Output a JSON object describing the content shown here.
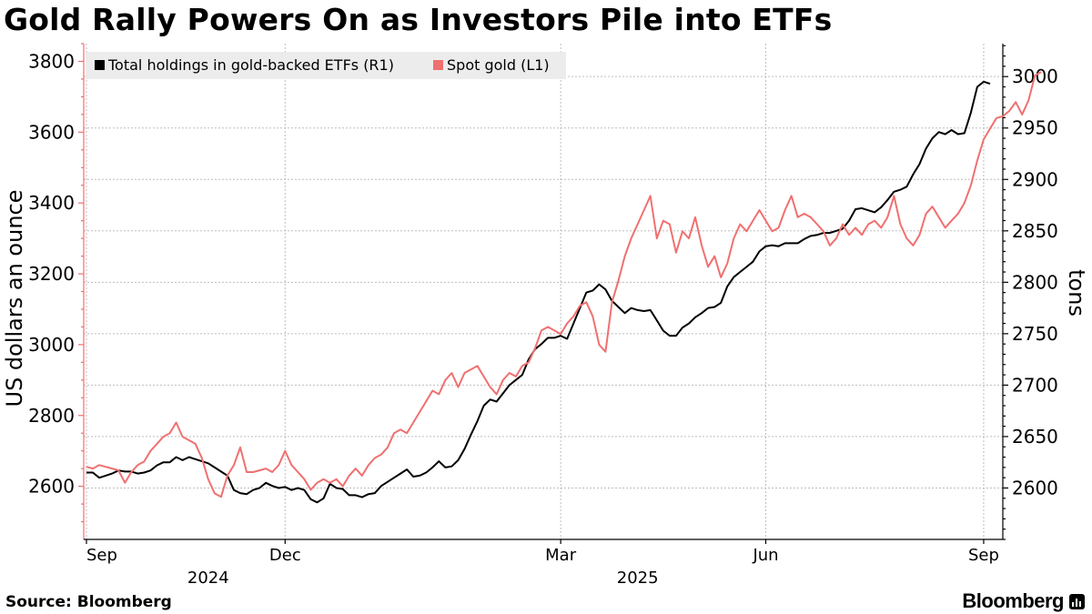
{
  "title": "Gold Rally Powers On as Investors Pile into ETFs",
  "source": "Source: Bloomberg",
  "brand": "Bloomberg",
  "colors": {
    "etf": "#000000",
    "spot": "#f07070",
    "grid": "#bdbdbd"
  },
  "chart_data": {
    "type": "line",
    "title": "Gold Rally Powers On as Investors Pile into ETFs",
    "x_labels": [
      {
        "label": "Sep",
        "index": 0
      },
      {
        "label": "Dec",
        "index": 31
      },
      {
        "label": "Mar",
        "index": 74
      },
      {
        "label": "Jun",
        "index": 106
      },
      {
        "label": "Sep",
        "index": 140
      }
    ],
    "x_year_labels": [
      {
        "label": "2024",
        "index": 19
      },
      {
        "label": "2025",
        "index": 86
      }
    ],
    "left_axis": {
      "label": "US dollars an ounce",
      "ylim": [
        2450,
        3850
      ],
      "ticks": [
        2600,
        2800,
        3000,
        3200,
        3400,
        3600,
        3800
      ]
    },
    "right_axis": {
      "label": "tons",
      "ylim": [
        2550,
        3032
      ],
      "ticks": [
        2600,
        2650,
        2700,
        2750,
        2800,
        2850,
        2900,
        2950,
        3000
      ]
    },
    "series": [
      {
        "name": "Total holdings in gold-backed ETFs (R1)",
        "axis": "right",
        "values": [
          2615,
          2615,
          2610,
          2612,
          2614,
          2617,
          2616,
          2616,
          2614,
          2615,
          2617,
          2622,
          2625,
          2625,
          2630,
          2627,
          2630,
          2628,
          2626,
          2624,
          2620,
          2616,
          2612,
          2598,
          2595,
          2594,
          2598,
          2600,
          2605,
          2602,
          2600,
          2601,
          2598,
          2600,
          2598,
          2589,
          2586,
          2590,
          2604,
          2600,
          2599,
          2593,
          2593,
          2591,
          2594,
          2595,
          2602,
          2606,
          2610,
          2614,
          2618,
          2611,
          2612,
          2615,
          2620,
          2626,
          2620,
          2621,
          2627,
          2638,
          2652,
          2665,
          2680,
          2686,
          2684,
          2692,
          2700,
          2705,
          2710,
          2725,
          2735,
          2740,
          2746,
          2746,
          2748,
          2745,
          2760,
          2775,
          2790,
          2792,
          2798,
          2793,
          2782,
          2776,
          2770,
          2775,
          2773,
          2772,
          2773,
          2763,
          2753,
          2748,
          2748,
          2756,
          2760,
          2766,
          2770,
          2775,
          2776,
          2780,
          2796,
          2805,
          2810,
          2815,
          2820,
          2830,
          2835,
          2836,
          2835,
          2838,
          2838,
          2838,
          2842,
          2845,
          2846,
          2848,
          2848,
          2850,
          2852,
          2860,
          2871,
          2872,
          2870,
          2868,
          2873,
          2880,
          2888,
          2890,
          2893,
          2905,
          2915,
          2930,
          2940,
          2946,
          2944,
          2948,
          2944,
          2945,
          2965,
          2990,
          2995,
          2993
        ]
      },
      {
        "name": "Spot gold (L1)",
        "axis": "left",
        "values": [
          2655,
          2650,
          2660,
          2655,
          2650,
          2645,
          2610,
          2640,
          2660,
          2670,
          2700,
          2720,
          2740,
          2750,
          2780,
          2740,
          2730,
          2720,
          2680,
          2620,
          2580,
          2570,
          2630,
          2660,
          2710,
          2640,
          2640,
          2645,
          2650,
          2640,
          2660,
          2700,
          2660,
          2640,
          2620,
          2590,
          2610,
          2620,
          2610,
          2620,
          2600,
          2630,
          2650,
          2630,
          2660,
          2680,
          2690,
          2710,
          2750,
          2760,
          2750,
          2780,
          2810,
          2840,
          2870,
          2860,
          2900,
          2920,
          2880,
          2920,
          2930,
          2940,
          2910,
          2880,
          2860,
          2900,
          2920,
          2910,
          2940,
          2950,
          2990,
          3040,
          3050,
          3040,
          3030,
          3060,
          3080,
          3110,
          3120,
          3080,
          3000,
          2980,
          3120,
          3180,
          3250,
          3300,
          3340,
          3380,
          3420,
          3300,
          3350,
          3340,
          3260,
          3320,
          3300,
          3360,
          3280,
          3220,
          3250,
          3190,
          3230,
          3300,
          3340,
          3320,
          3350,
          3380,
          3350,
          3320,
          3330,
          3380,
          3420,
          3360,
          3370,
          3360,
          3340,
          3320,
          3280,
          3300,
          3340,
          3310,
          3330,
          3310,
          3340,
          3350,
          3330,
          3360,
          3420,
          3340,
          3300,
          3280,
          3310,
          3370,
          3390,
          3360,
          3330,
          3350,
          3370,
          3400,
          3450,
          3520,
          3580,
          3610,
          3640,
          3645,
          3660,
          3685,
          3650,
          3690,
          3760,
          3770
        ]
      }
    ]
  }
}
